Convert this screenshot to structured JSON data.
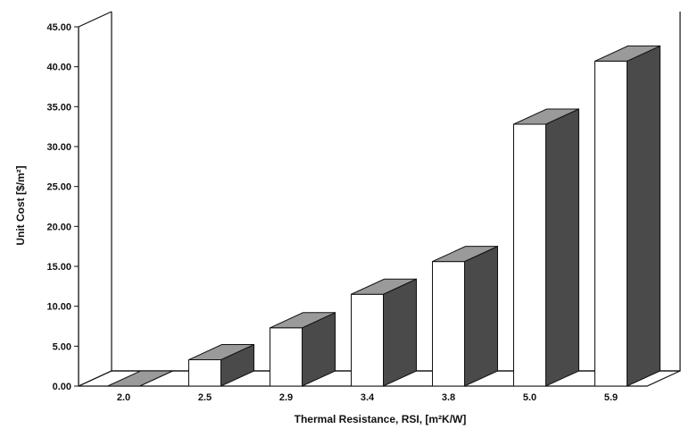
{
  "chart_data": {
    "type": "bar",
    "style": "3d",
    "categories": [
      "2.0",
      "2.5",
      "2.9",
      "3.4",
      "3.8",
      "5.0",
      "5.9"
    ],
    "values": [
      0.0,
      3.3,
      7.3,
      11.5,
      15.6,
      32.8,
      40.7
    ],
    "xlabel": "Thermal Resistance, RSI, [m²K/W]",
    "ylabel": "Unit Cost [$/m²]",
    "ylim": [
      0,
      45
    ],
    "yticks": [
      "0.00",
      "5.00",
      "10.00",
      "15.00",
      "20.00",
      "25.00",
      "30.00",
      "35.00",
      "40.00",
      "45.00"
    ],
    "grid": false,
    "legend": "none",
    "colors": {
      "bar_front": "#ffffff",
      "bar_side": "#4a4a4a",
      "bar_top": "#9a9a9a",
      "axis": "#111111"
    }
  }
}
